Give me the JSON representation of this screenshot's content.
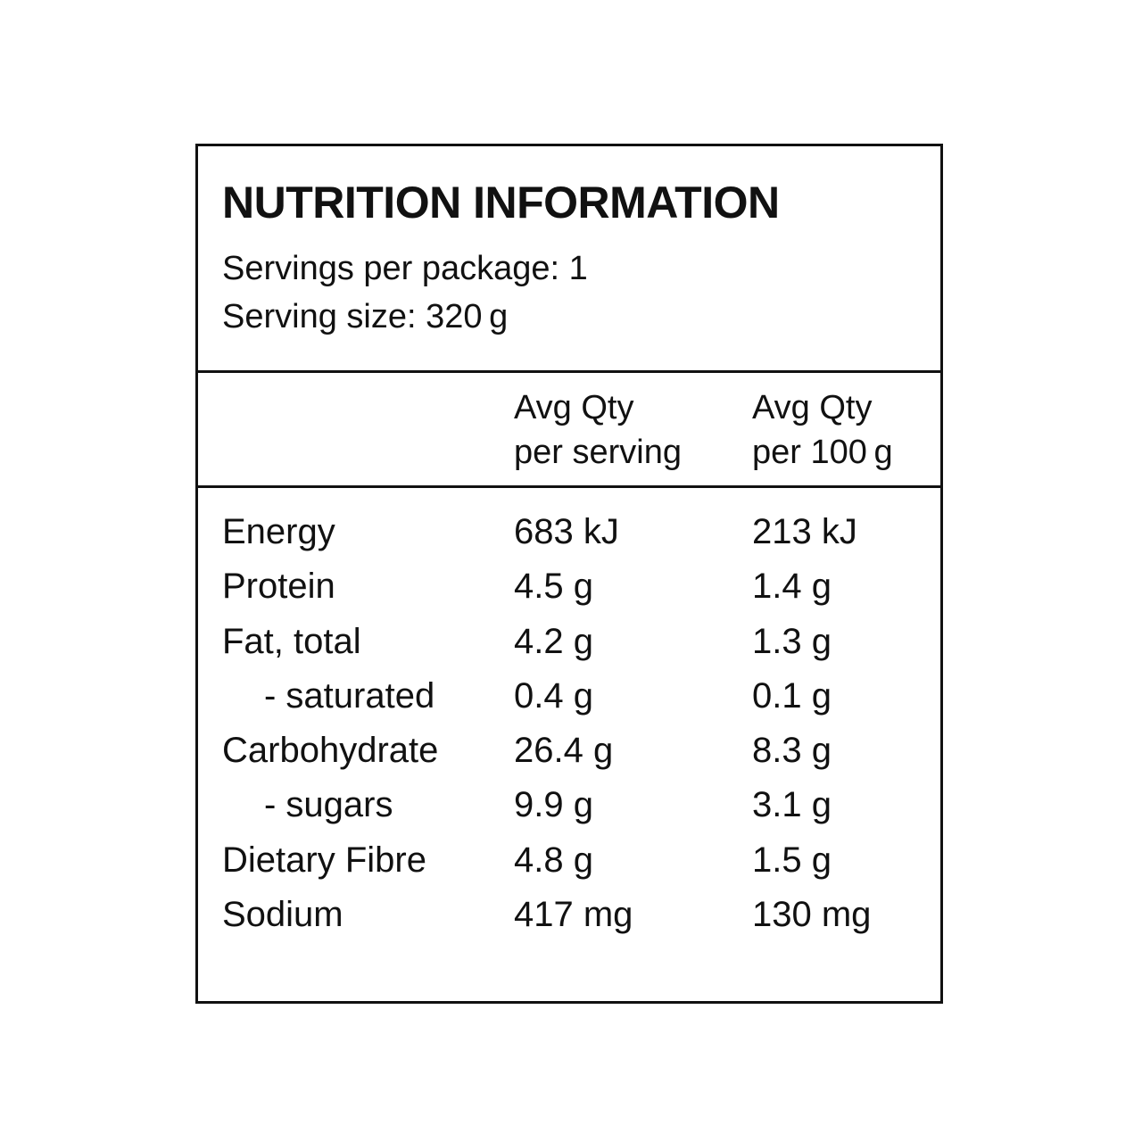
{
  "panel": {
    "title": "NUTRITION INFORMATION",
    "servings_per_package": "Servings per package: 1",
    "serving_size": "Serving size: 320 g"
  },
  "columns": {
    "per_serving": [
      "Avg Qty",
      "per serving"
    ],
    "per_100g": [
      "Avg Qty",
      "per 100 g"
    ]
  },
  "rows": [
    {
      "name": "Energy",
      "sub": false,
      "per_serving": "683 kJ",
      "per_100g": "213 kJ"
    },
    {
      "name": "Protein",
      "sub": false,
      "per_serving": "4.5 g",
      "per_100g": "1.4 g"
    },
    {
      "name": "Fat, total",
      "sub": false,
      "per_serving": "4.2 g",
      "per_100g": "1.3 g"
    },
    {
      "name": "- saturated",
      "sub": true,
      "per_serving": "0.4 g",
      "per_100g": "0.1 g"
    },
    {
      "name": "Carbohydrate",
      "sub": false,
      "per_serving": "26.4 g",
      "per_100g": "8.3 g"
    },
    {
      "name": "- sugars",
      "sub": true,
      "per_serving": "9.9 g",
      "per_100g": "3.1 g"
    },
    {
      "name": "Dietary Fibre",
      "sub": false,
      "per_serving": "4.8 g",
      "per_100g": "1.5 g"
    },
    {
      "name": "Sodium",
      "sub": false,
      "per_serving": "417 mg",
      "per_100g": "130 mg"
    }
  ]
}
